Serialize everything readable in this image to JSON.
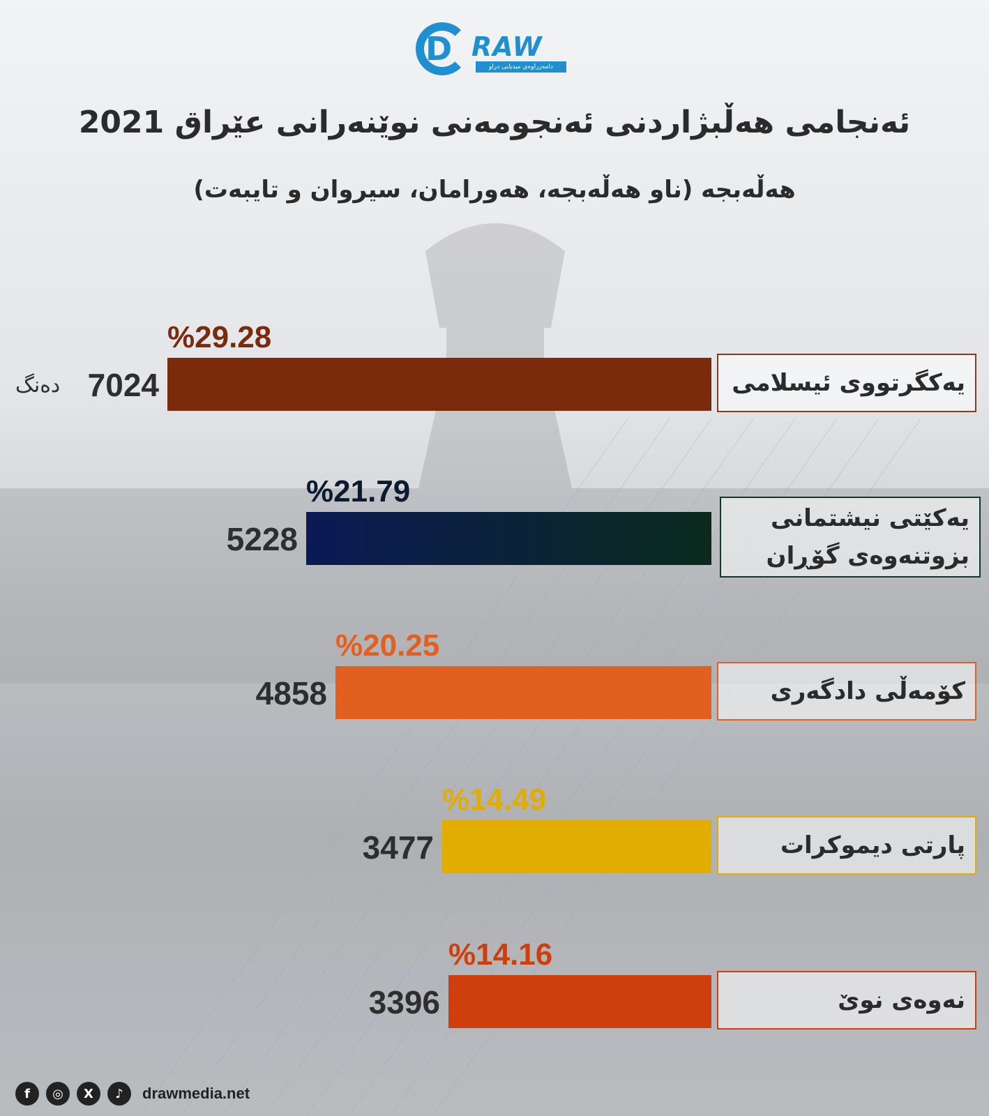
{
  "brand": {
    "logo_text": "RAW",
    "logo_letter": "D",
    "logo_tagline": "دامەزراوەی میدیایی دراو"
  },
  "header": {
    "title": "ئەنجامی هەڵبژاردنی ئەنجومەنی نوێنەرانی عێراق 2021",
    "subtitle": "هەڵەبجە (ناو هەڵەبجە، هەورامان، سیروان و تایبەت)"
  },
  "vote_unit": "دەنگ",
  "colors": {
    "accent": "#1f8fd0"
  },
  "chart_data": {
    "type": "bar",
    "orientation": "horizontal",
    "categories": [
      "یەکگرتووی ئیسلامی",
      "یەکێتی نیشتمانی بزوتنەوەی گۆڕان",
      "کۆمەڵی دادگەری",
      "پارتی دیموکرات",
      "نەوەی نوێ"
    ],
    "values": [
      7024,
      5228,
      4858,
      3477,
      3396
    ],
    "percentages": [
      "%29.28",
      "%21.79",
      "%20.25",
      "%14.49",
      "%14.16"
    ],
    "colors": [
      "#7a2b0c",
      "#0b1a55",
      "#e2601f",
      "#e3ad00",
      "#cf3f0d"
    ],
    "percent_label_colors": [
      "#7a2b0c",
      "#0b1a2e",
      "#e2601f",
      "#e3ad00",
      "#cf3f0d"
    ],
    "party_border_colors": [
      "#8a3a1c",
      "#0c3a22",
      "#e2601f",
      "#e3ad00",
      "#cf3f0d"
    ],
    "xlim": [
      0,
      7024
    ]
  },
  "footer": {
    "site": "drawmedia.net",
    "social_icons": [
      "facebook-icon",
      "instagram-icon",
      "x-icon",
      "tiktok-icon"
    ],
    "social_glyphs": [
      "f",
      "◎",
      "X",
      "♪"
    ]
  }
}
